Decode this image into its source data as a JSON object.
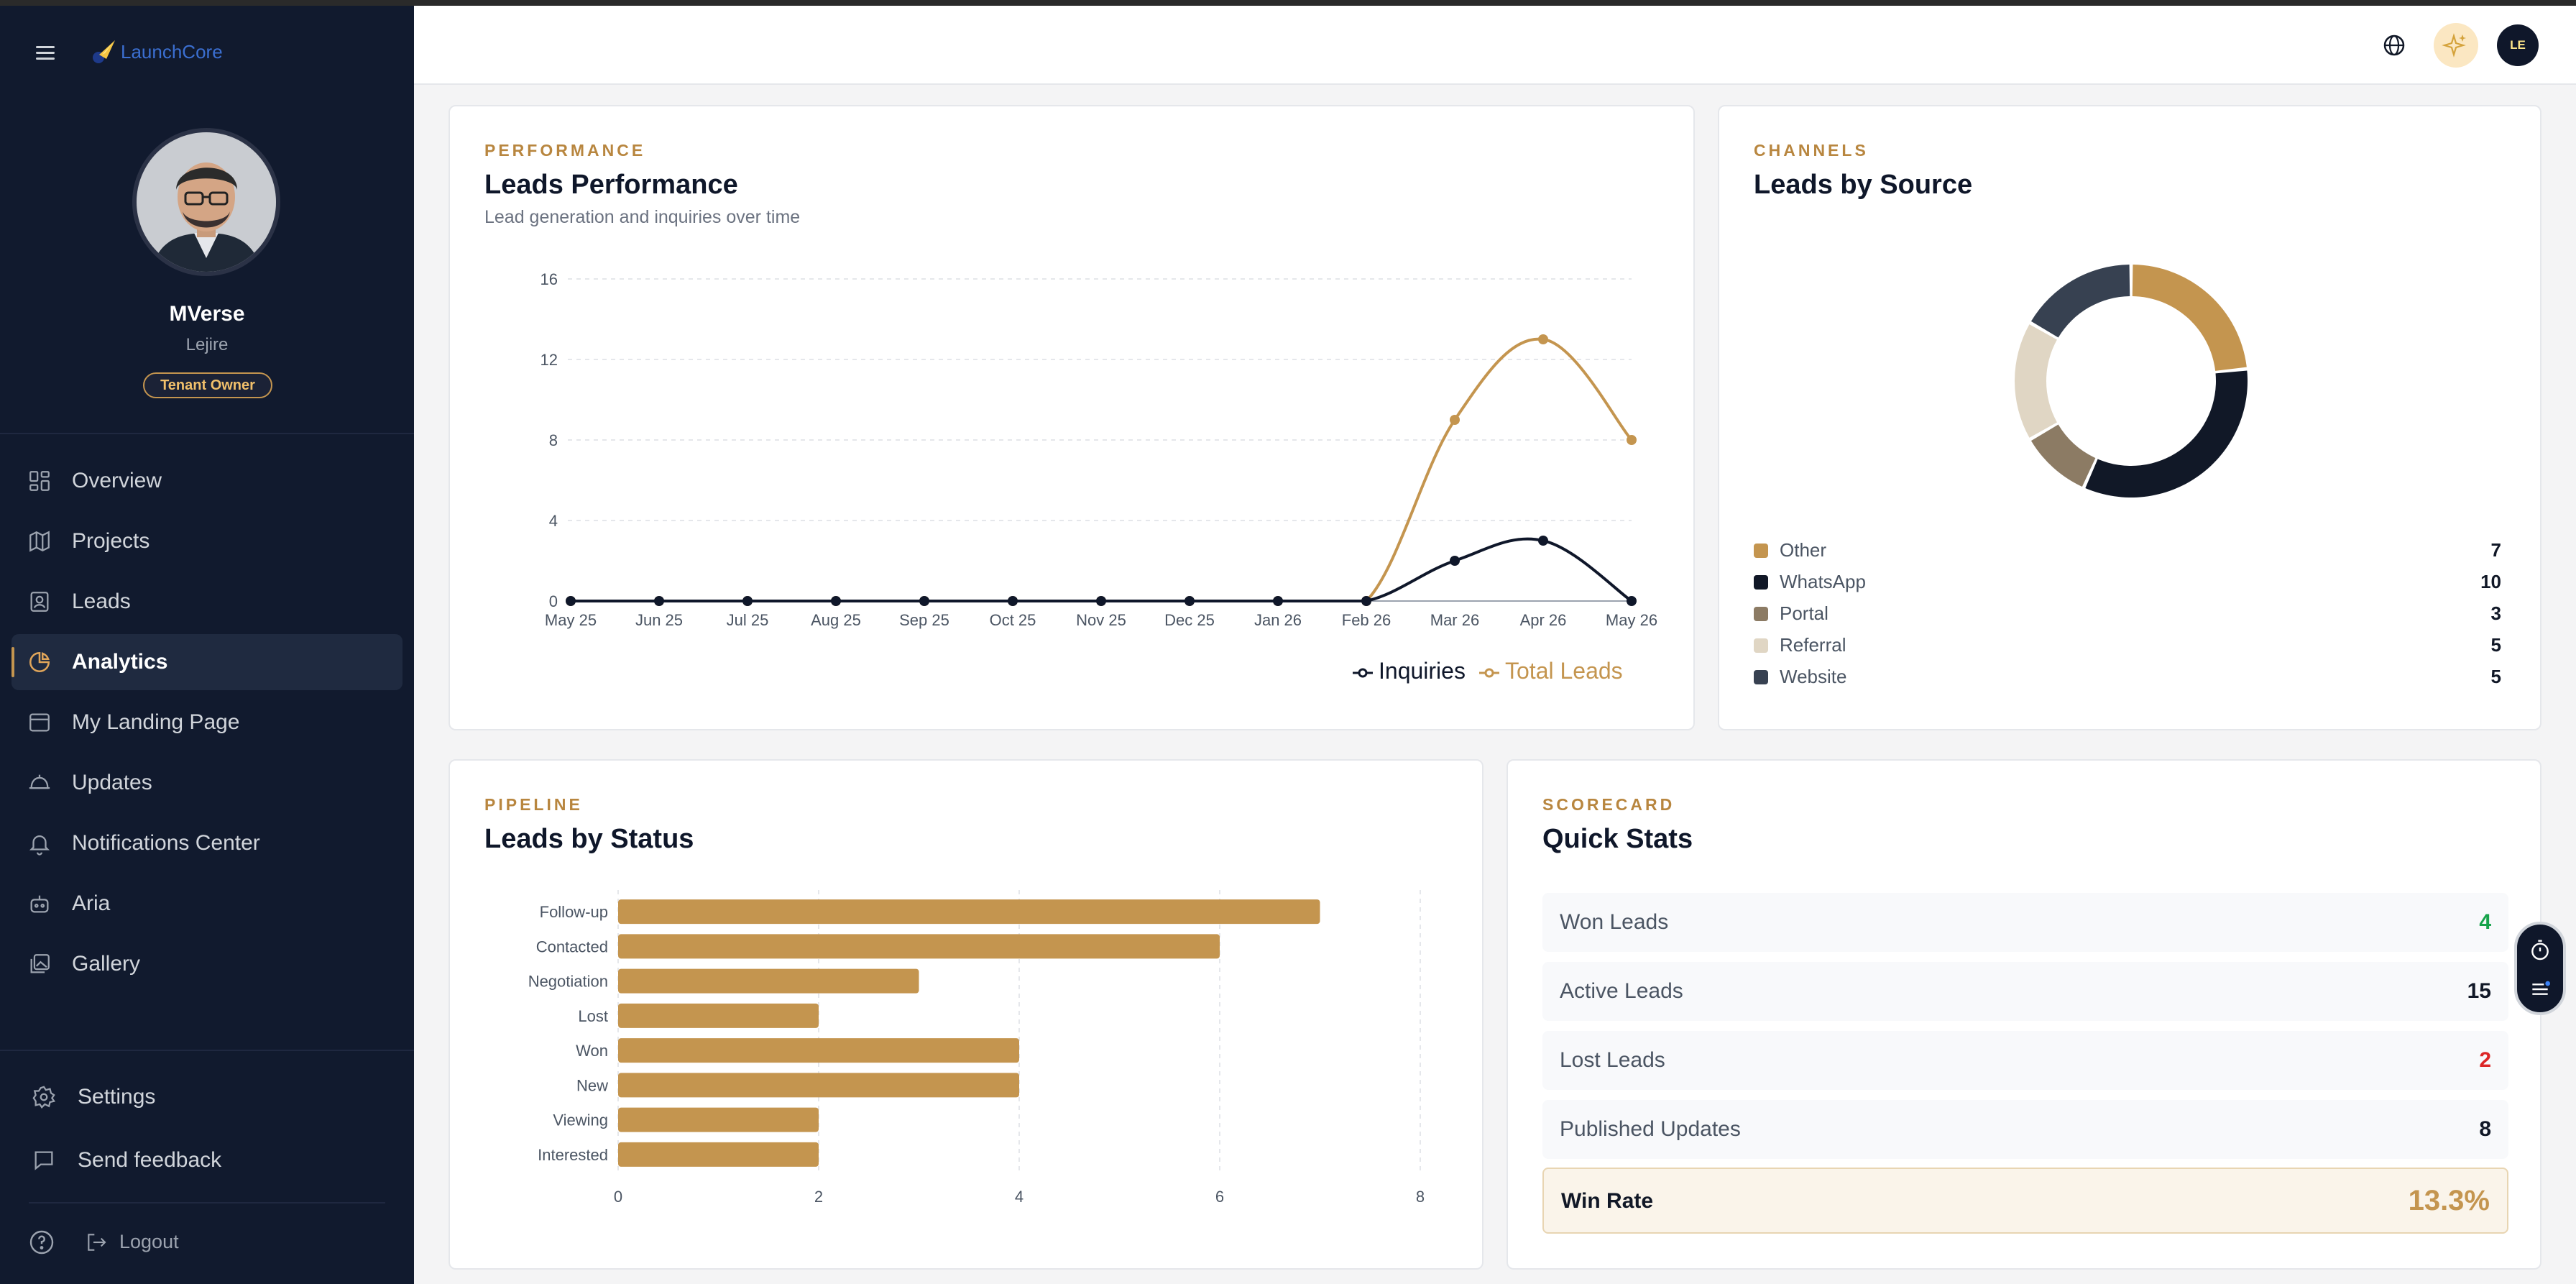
{
  "app": {
    "name": "LaunchCore"
  },
  "profile": {
    "name": "MVerse",
    "subtitle": "Lejire",
    "role": "Tenant Owner"
  },
  "nav": {
    "items": [
      {
        "label": "Overview",
        "icon": "grid-icon",
        "active": false
      },
      {
        "label": "Projects",
        "icon": "map-icon",
        "active": false
      },
      {
        "label": "Leads",
        "icon": "contact-icon",
        "active": false
      },
      {
        "label": "Analytics",
        "icon": "pie-chart-icon",
        "active": true
      },
      {
        "label": "My Landing Page",
        "icon": "browser-icon",
        "active": false
      },
      {
        "label": "Updates",
        "icon": "megaphone-icon",
        "active": false
      },
      {
        "label": "Notifications Center",
        "icon": "bell-icon",
        "active": false
      },
      {
        "label": "Aria",
        "icon": "bot-icon",
        "active": false
      },
      {
        "label": "Gallery",
        "icon": "gallery-icon",
        "active": false
      }
    ],
    "settings": "Settings",
    "feedback": "Send feedback",
    "logout": "Logout"
  },
  "header": {
    "user_initials": "LE"
  },
  "performance": {
    "kicker": "PERFORMANCE",
    "title": "Leads Performance",
    "subtitle": "Lead generation and inquiries over time"
  },
  "channels": {
    "kicker": "CHANNELS",
    "title": "Leads by Source",
    "items": [
      {
        "label": "Other",
        "value": "7",
        "color": "#c4954f"
      },
      {
        "label": "WhatsApp",
        "value": "10",
        "color": "#111827"
      },
      {
        "label": "Portal",
        "value": "3",
        "color": "#8c7b64"
      },
      {
        "label": "Referral",
        "value": "5",
        "color": "#e0d6c4"
      },
      {
        "label": "Website",
        "value": "5",
        "color": "#374151"
      }
    ]
  },
  "pipeline": {
    "kicker": "PIPELINE",
    "title": "Leads by Status"
  },
  "scorecard": {
    "kicker": "SCORECARD",
    "title": "Quick Stats",
    "stats": [
      {
        "label": "Won Leads",
        "value": "4",
        "color": "#16a34a"
      },
      {
        "label": "Active Leads",
        "value": "15",
        "color": "#111827"
      },
      {
        "label": "Lost Leads",
        "value": "2",
        "color": "#dc2626"
      },
      {
        "label": "Published Updates",
        "value": "8",
        "color": "#111827"
      }
    ],
    "win_rate_label": "Win Rate",
    "win_rate_value": "13.3%"
  },
  "chart_data": [
    {
      "type": "line",
      "categories": [
        "May 25",
        "Jun 25",
        "Jul 25",
        "Aug 25",
        "Sep 25",
        "Oct 25",
        "Nov 25",
        "Dec 25",
        "Jan 26",
        "Feb 26",
        "Mar 26",
        "Apr 26",
        "May 26"
      ],
      "series": [
        {
          "name": "Inquiries",
          "values": [
            0,
            0,
            0,
            0,
            0,
            0,
            0,
            0,
            0,
            0,
            2,
            3,
            0
          ],
          "color": "#0f172a"
        },
        {
          "name": "Total Leads",
          "values": [
            0,
            0,
            0,
            0,
            0,
            0,
            0,
            0,
            0,
            0,
            9,
            13,
            8
          ],
          "color": "#c4954f"
        }
      ],
      "yticks": [
        0,
        4,
        8,
        12,
        16
      ],
      "ylim": [
        0,
        16
      ],
      "legend": "bottom",
      "grid": true
    },
    {
      "type": "pie",
      "categories": [
        "Other",
        "WhatsApp",
        "Portal",
        "Referral",
        "Website"
      ],
      "values": [
        7,
        10,
        3,
        5,
        5
      ],
      "donut": true
    },
    {
      "type": "bar",
      "orientation": "horizontal",
      "categories": [
        "Follow-up",
        "Contacted",
        "Negotiation",
        "Lost",
        "Won",
        "New",
        "Viewing",
        "Interested"
      ],
      "values": [
        7,
        6,
        3,
        2,
        4,
        4,
        2,
        2
      ],
      "xticks": [
        0,
        2,
        4,
        6,
        8
      ],
      "xlim": [
        0,
        8
      ],
      "color": "#c4954f",
      "grid": true
    }
  ]
}
